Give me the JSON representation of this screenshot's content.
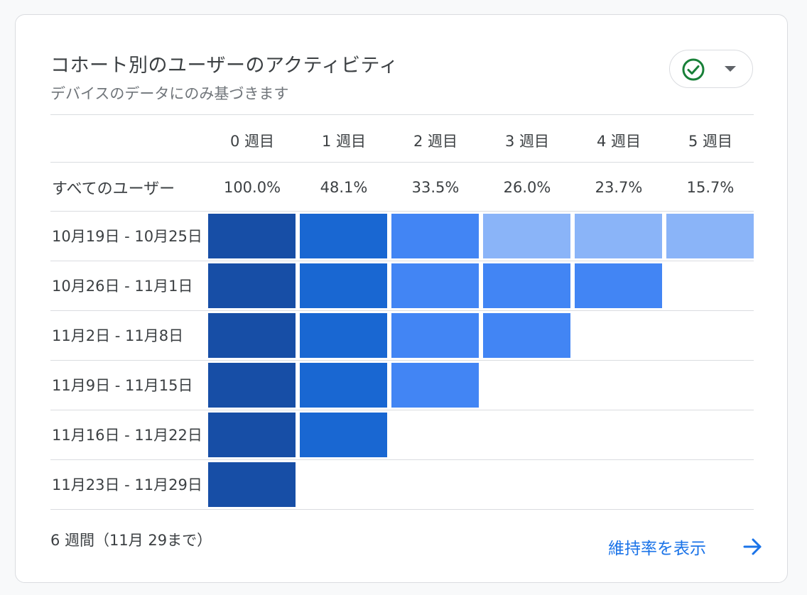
{
  "card": {
    "title": "コホート別のユーザーのアクティビティ",
    "subtitle": "デバイスのデータにのみ基づきます"
  },
  "status": {
    "icon": "check-circle-icon",
    "dropdown_icon": "caret-down-icon",
    "check_color": "#188038"
  },
  "chart_data": {
    "type": "heatmap",
    "title": "コホート別のユーザーのアクティビティ",
    "subtitle": "デバイスのデータにのみ基づきます",
    "columns": [
      "0 週目",
      "1 週目",
      "2 週目",
      "3 週目",
      "4 週目",
      "5 週目"
    ],
    "summary_label": "すべてのユーザー",
    "summary_values": [
      "100.0%",
      "48.1%",
      "33.5%",
      "26.0%",
      "23.7%",
      "15.7%"
    ],
    "rows": [
      {
        "label": "10月19日 - 10月25日",
        "levels": [
          4,
          3,
          2,
          1,
          1,
          1
        ]
      },
      {
        "label": "10月26日 - 11月1日",
        "levels": [
          4,
          3,
          2,
          2,
          2
        ]
      },
      {
        "label": "11月2日 - 11月8日",
        "levels": [
          4,
          3,
          2,
          2
        ]
      },
      {
        "label": "11月9日 - 11月15日",
        "levels": [
          4,
          3,
          2
        ]
      },
      {
        "label": "11月16日 - 11月22日",
        "levels": [
          4,
          3
        ]
      },
      {
        "label": "11月23日 - 11月29日",
        "levels": [
          4
        ]
      }
    ],
    "level_colors": {
      "1": "#8ab4f8",
      "2": "#4285f4",
      "3": "#1967d2",
      "4": "#174ea6"
    }
  },
  "footer": {
    "range": "6 週間（11月 29まで）",
    "link_label": "維持率を表示",
    "link_icon": "arrow-right-icon",
    "link_color": "#1a73e8"
  }
}
